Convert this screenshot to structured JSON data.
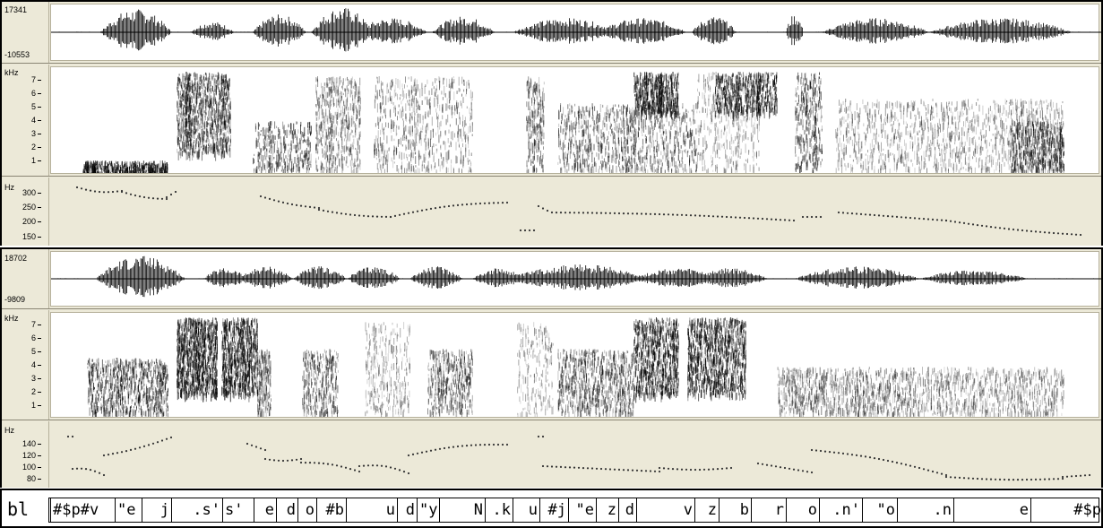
{
  "panels": [
    {
      "waveform": {
        "max_label": "17341",
        "min_label": "-10553"
      },
      "spectrogram": {
        "unit": "kHz",
        "ticks": [
          "7",
          "6",
          "5",
          "4",
          "3",
          "2",
          "1"
        ]
      },
      "pitch": {
        "unit": "Hz",
        "ticks": [
          "300",
          "250",
          "200",
          "150"
        ]
      }
    },
    {
      "waveform": {
        "max_label": "18702",
        "min_label": "-9809"
      },
      "spectrogram": {
        "unit": "kHz",
        "ticks": [
          "7",
          "6",
          "5",
          "4",
          "3",
          "2",
          "1"
        ]
      },
      "pitch": {
        "unit": "Hz",
        "ticks": [
          "140",
          "120",
          "100",
          "80"
        ]
      }
    }
  ],
  "label_tier": {
    "name": "bl",
    "segments": [
      {
        "text": "#$p#v"
      },
      {
        "text": "\"e"
      },
      {
        "text": "j"
      },
      {
        "text": ".s'"
      },
      {
        "text": "s'"
      },
      {
        "text": "e"
      },
      {
        "text": "d"
      },
      {
        "text": "o"
      },
      {
        "text": "#b"
      },
      {
        "text": "u"
      },
      {
        "text": "d"
      },
      {
        "text": "\"y"
      },
      {
        "text": "N"
      },
      {
        "text": ".k"
      },
      {
        "text": "u"
      },
      {
        "text": "#j"
      },
      {
        "text": "\"e"
      },
      {
        "text": "z"
      },
      {
        "text": "d"
      },
      {
        "text": "v"
      },
      {
        "text": "z"
      },
      {
        "text": "b"
      },
      {
        "text": "r"
      },
      {
        "text": "o"
      },
      {
        "text": ".n'"
      },
      {
        "text": "\"o"
      },
      {
        "text": ".n"
      },
      {
        "text": "e"
      },
      {
        "text": "#$p"
      }
    ]
  },
  "colors": {
    "panel_bg": "#ece9d8",
    "ink": "#000000",
    "plot_bg": "#ffffff"
  }
}
